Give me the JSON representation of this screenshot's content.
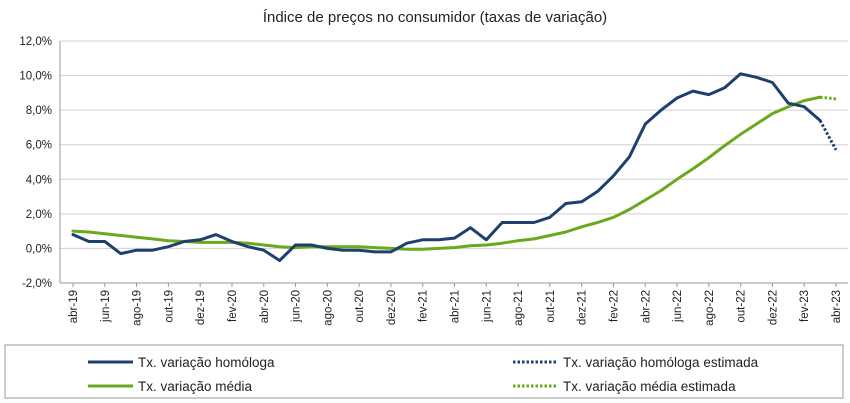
{
  "chart_data": {
    "type": "line",
    "title": "Índice de preços no consumidor  (taxas  de variação)",
    "ylim": [
      -2,
      12
    ],
    "y_ticks": [
      "-2,0%",
      "0,0%",
      "2,0%",
      "4,0%",
      "6,0%",
      "8,0%",
      "10,0%",
      "12,0%"
    ],
    "grid": "horizontal",
    "legend_position": "bottom",
    "x": [
      "abr-19",
      "mai-19",
      "jun-19",
      "jul-19",
      "ago-19",
      "set-19",
      "out-19",
      "nov-19",
      "dez-19",
      "jan-20",
      "fev-20",
      "mar-20",
      "abr-20",
      "mai-20",
      "jun-20",
      "jul-20",
      "ago-20",
      "set-20",
      "out-20",
      "nov-20",
      "dez-20",
      "jan-21",
      "fev-21",
      "mar-21",
      "abr-21",
      "mai-21",
      "jun-21",
      "jul-21",
      "ago-21",
      "set-21",
      "out-21",
      "nov-21",
      "dez-21",
      "jan-22",
      "fev-22",
      "mar-22",
      "abr-22",
      "mai-22",
      "jun-22",
      "jul-22",
      "ago-22",
      "set-22",
      "out-22",
      "nov-22",
      "dez-22",
      "jan-23",
      "fev-23",
      "mar-23",
      "abr-23"
    ],
    "x_tick_labels": [
      "abr-19",
      "jun-19",
      "ago-19",
      "out-19",
      "dez-19",
      "fev-20",
      "abr-20",
      "jun-20",
      "ago-20",
      "out-20",
      "dez-20",
      "fev-21",
      "abr-21",
      "jun-21",
      "ago-21",
      "out-21",
      "dez-21",
      "fev-22",
      "abr-22",
      "jun-22",
      "ago-22",
      "out-22",
      "dez-22",
      "fev-23",
      "abr-23"
    ],
    "series": [
      {
        "name": "Tx. variação homóloga",
        "color": "#1f3f6e",
        "style": "solid",
        "values": [
          0.8,
          0.4,
          0.4,
          -0.3,
          -0.1,
          -0.1,
          0.1,
          0.4,
          0.5,
          0.8,
          0.4,
          0.1,
          -0.1,
          -0.7,
          0.2,
          0.2,
          0.0,
          -0.1,
          -0.1,
          -0.2,
          -0.2,
          0.3,
          0.5,
          0.5,
          0.6,
          1.2,
          0.5,
          1.5,
          1.5,
          1.5,
          1.8,
          2.6,
          2.7,
          3.3,
          4.2,
          5.3,
          7.2,
          8.0,
          8.7,
          9.1,
          8.9,
          9.3,
          10.1,
          9.9,
          9.6,
          8.4,
          8.2,
          7.4,
          null
        ]
      },
      {
        "name": "Tx. variação homóloga estimada",
        "color": "#1f3f6e",
        "style": "dotted",
        "values": [
          null,
          null,
          null,
          null,
          null,
          null,
          null,
          null,
          null,
          null,
          null,
          null,
          null,
          null,
          null,
          null,
          null,
          null,
          null,
          null,
          null,
          null,
          null,
          null,
          null,
          null,
          null,
          null,
          null,
          null,
          null,
          null,
          null,
          null,
          null,
          null,
          null,
          null,
          null,
          null,
          null,
          null,
          null,
          null,
          null,
          null,
          null,
          7.4,
          5.7
        ]
      },
      {
        "name": "Tx. variação média",
        "color": "#6aa81e",
        "style": "solid",
        "values": [
          1.0,
          0.95,
          0.85,
          0.75,
          0.65,
          0.55,
          0.45,
          0.4,
          0.35,
          0.35,
          0.35,
          0.3,
          0.2,
          0.1,
          0.05,
          0.1,
          0.1,
          0.1,
          0.1,
          0.05,
          0.0,
          -0.05,
          -0.05,
          0.0,
          0.05,
          0.15,
          0.2,
          0.3,
          0.45,
          0.55,
          0.75,
          0.95,
          1.25,
          1.5,
          1.8,
          2.25,
          2.8,
          3.35,
          4.0,
          4.6,
          5.25,
          5.95,
          6.6,
          7.2,
          7.8,
          8.2,
          8.55,
          8.75,
          null
        ]
      },
      {
        "name": "Tx. variação média  estimada",
        "color": "#6aa81e",
        "style": "dotted",
        "values": [
          null,
          null,
          null,
          null,
          null,
          null,
          null,
          null,
          null,
          null,
          null,
          null,
          null,
          null,
          null,
          null,
          null,
          null,
          null,
          null,
          null,
          null,
          null,
          null,
          null,
          null,
          null,
          null,
          null,
          null,
          null,
          null,
          null,
          null,
          null,
          null,
          null,
          null,
          null,
          null,
          null,
          null,
          null,
          null,
          null,
          null,
          null,
          8.75,
          8.65
        ]
      }
    ]
  }
}
